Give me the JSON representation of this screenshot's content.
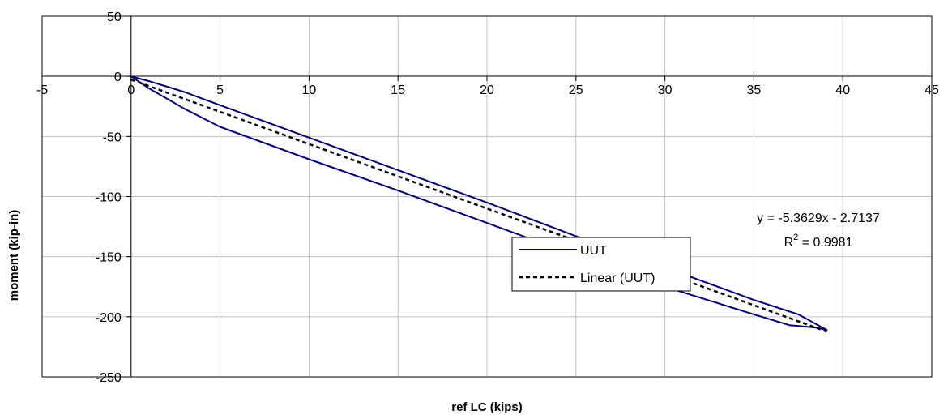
{
  "chart_data": {
    "type": "scatter",
    "title": "",
    "xlabel": "ref LC (kips)",
    "ylabel": "moment (kip-in)",
    "xlim": [
      -5,
      45
    ],
    "ylim": [
      -250,
      50
    ],
    "x_ticks": [
      -5,
      0,
      5,
      10,
      15,
      20,
      25,
      30,
      35,
      40,
      45
    ],
    "y_ticks": [
      50,
      0,
      -50,
      -100,
      -150,
      -200,
      -250
    ],
    "grid": true,
    "legend_position": "center-right",
    "series": [
      {
        "name": "UUT",
        "color": "#000080",
        "style": "solid",
        "x": [
          0,
          1,
          3,
          5,
          10,
          15,
          20,
          25,
          30,
          35,
          37.5,
          39.1,
          38.5,
          37,
          35,
          30,
          25,
          20,
          15,
          10,
          5,
          3,
          1,
          0
        ],
        "y": [
          0,
          -4,
          -13,
          -24,
          -51,
          -78,
          -105,
          -133,
          -159,
          -186,
          -198,
          -211,
          -209,
          -207,
          -198,
          -175,
          -149,
          -122,
          -95,
          -69,
          -42,
          -27,
          -10,
          0
        ]
      },
      {
        "name": "Linear (UUT)",
        "color": "#000000",
        "style": "dashed",
        "x": [
          0,
          39.1
        ],
        "y": [
          -2.7137,
          -212.4031
        ]
      }
    ],
    "annotations": {
      "equation": "y = -5.3629x - 2.7137",
      "r2_prefix": "R",
      "r2_exponent": "2",
      "r2_value": " = 0.9981"
    }
  }
}
